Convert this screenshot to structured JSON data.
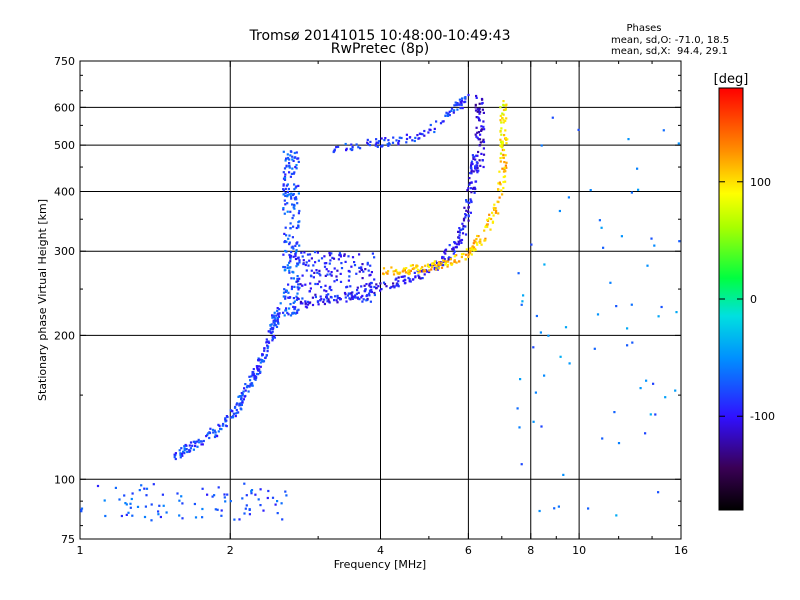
{
  "chart_data": {
    "type": "scatter",
    "title": "Tromsø 20141015 10:48:00-10:49:43",
    "subtitle": "RwPretec (8p)",
    "xlabel": "Frequency [MHz]",
    "ylabel": "Stationary phase Virtual Height [km]",
    "xscale": "log",
    "yscale": "log",
    "xlim": [
      1,
      16
    ],
    "ylim": [
      75,
      750
    ],
    "xticks": [
      1,
      2,
      4,
      6,
      8,
      10,
      16
    ],
    "xtick_labels": [
      "1",
      "2",
      "4",
      "6",
      "8",
      "10",
      "16"
    ],
    "yticks": [
      75,
      100,
      200,
      300,
      400,
      500,
      600,
      750
    ],
    "ytick_labels": [
      "75",
      "100",
      "200",
      "300",
      "400",
      "500",
      "600",
      "750"
    ],
    "grid_x": [
      2,
      4,
      6,
      8,
      10
    ],
    "grid_y": [
      100,
      200,
      300,
      400,
      500,
      600
    ],
    "stats": {
      "heading": "Phases",
      "line_o": "mean, sd,O: -71.0, 18.5",
      "line_x": "mean, sd,X:  94.4, 29.1"
    },
    "colorbar": {
      "label": "[deg]",
      "range": [
        -180,
        180
      ],
      "ticks": [
        100,
        0,
        -100
      ],
      "tick_labels": [
        "100",
        "0",
        "-100"
      ],
      "colormap": "rainbow (black-violet-blue-cyan-green-yellow-orange-red)"
    },
    "series": [
      {
        "trace": "low-height-cluster",
        "phase": -75,
        "x_range": [
          1.0,
          2.6
        ],
        "y_range": [
          82,
          98
        ],
        "points": 90
      },
      {
        "trace": "E-to-F-rise",
        "phase": -80,
        "x": [
          1.55,
          1.7,
          1.85,
          2.0,
          2.1,
          2.2,
          2.3,
          2.4,
          2.45,
          2.5
        ],
        "y": [
          112,
          118,
          125,
          135,
          145,
          160,
          175,
          195,
          210,
          230
        ],
        "points": 240
      },
      {
        "trace": "F1-cusp",
        "phase": -75,
        "x_range": [
          2.55,
          2.75
        ],
        "y_range": [
          220,
          490
        ],
        "points": 200
      },
      {
        "trace": "F2-O-mode-trace",
        "phase": -100,
        "x": [
          2.7,
          3.2,
          3.8,
          4.3,
          4.8,
          5.3,
          5.7,
          5.95,
          6.1,
          6.2
        ],
        "y": [
          230,
          238,
          248,
          258,
          268,
          285,
          310,
          350,
          410,
          470
        ],
        "points": 260
      },
      {
        "trace": "F2-O-mode-vertical",
        "phase": -110,
        "x_range": [
          6.2,
          6.45
        ],
        "y_range": [
          450,
          640
        ],
        "points": 60
      },
      {
        "trace": "F2-X-mode-trace",
        "phase": 110,
        "x": [
          4.0,
          4.5,
          5.0,
          5.5,
          6.0,
          6.4,
          6.8,
          7.0,
          7.1
        ],
        "y": [
          272,
          274,
          278,
          285,
          295,
          320,
          370,
          430,
          520
        ],
        "points": 200
      },
      {
        "trace": "F2-X-mode-vertical",
        "phase": 90,
        "x_range": [
          6.95,
          7.15
        ],
        "y_range": [
          480,
          620
        ],
        "points": 40
      },
      {
        "trace": "second-hop-upper",
        "phase": -85,
        "x": [
          3.2,
          3.8,
          4.3,
          4.8,
          5.3,
          5.7,
          6.0
        ],
        "y": [
          490,
          505,
          510,
          520,
          560,
          600,
          630
        ],
        "points": 110
      },
      {
        "trace": "mid-scatter-band",
        "phase": -95,
        "x_range": [
          2.7,
          3.9
        ],
        "y_range": [
          235,
          300
        ],
        "points": 180
      },
      {
        "trace": "sparse-high-frequency-scatter",
        "phase": -60,
        "x_range": [
          7.5,
          16
        ],
        "y_range": [
          80,
          620
        ],
        "points": 70
      }
    ]
  }
}
